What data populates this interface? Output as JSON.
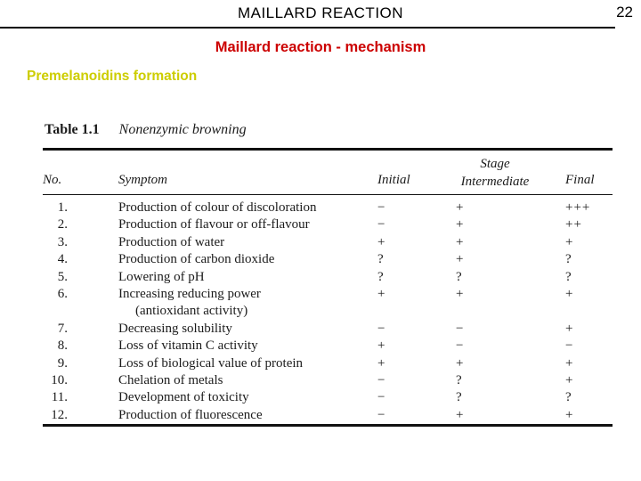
{
  "slide": {
    "header_title": "MAILLARD REACTION",
    "page_number": "22",
    "subtitle": "Maillard reaction - mechanism",
    "heading": "Premelanoidins formation"
  },
  "colors": {
    "subtitle_red": "#cc0000",
    "heading_yellow": "#cdcd00",
    "text_black": "#000000",
    "table_ink": "#1b1b1b"
  },
  "table": {
    "caption_label": "Table 1.1",
    "caption_title": "Nonenzymic browning",
    "columns": {
      "no": "No.",
      "symptom": "Symptom",
      "initial": "Initial",
      "stage": "Stage",
      "intermediate": "Intermediate",
      "final": "Final"
    },
    "rows": [
      {
        "no": "1.",
        "symptom": "Production of colour of discoloration",
        "initial": "−",
        "intermediate": "+",
        "final": "+++"
      },
      {
        "no": "2.",
        "symptom": "Production of flavour or off-flavour",
        "initial": "−",
        "intermediate": "+",
        "final": "++"
      },
      {
        "no": "3.",
        "symptom": "Production of water",
        "initial": "+",
        "intermediate": "+",
        "final": "+"
      },
      {
        "no": "4.",
        "symptom": "Production of carbon dioxide",
        "initial": "?",
        "intermediate": "+",
        "final": "?"
      },
      {
        "no": "5.",
        "symptom": "Lowering of pH",
        "initial": "?",
        "intermediate": "?",
        "final": "?"
      },
      {
        "no": "6.",
        "symptom": "Increasing reducing power",
        "symptom_line2": "(antioxidant activity)",
        "initial": "+",
        "intermediate": "+",
        "final": "+"
      },
      {
        "no": "7.",
        "symptom": "Decreasing solubility",
        "initial": "−",
        "intermediate": "−",
        "final": "+"
      },
      {
        "no": "8.",
        "symptom": "Loss of vitamin C activity",
        "initial": "+",
        "intermediate": "−",
        "final": "−"
      },
      {
        "no": "9.",
        "symptom": "Loss of biological value of protein",
        "initial": "+",
        "intermediate": "+",
        "final": "+"
      },
      {
        "no": "10.",
        "symptom": "Chelation of metals",
        "initial": "−",
        "intermediate": "?",
        "final": "+"
      },
      {
        "no": "11.",
        "symptom": "Development of toxicity",
        "initial": "−",
        "intermediate": "?",
        "final": "?"
      },
      {
        "no": "12.",
        "symptom": "Production of fluorescence",
        "initial": "−",
        "intermediate": "+",
        "final": "+"
      }
    ]
  }
}
